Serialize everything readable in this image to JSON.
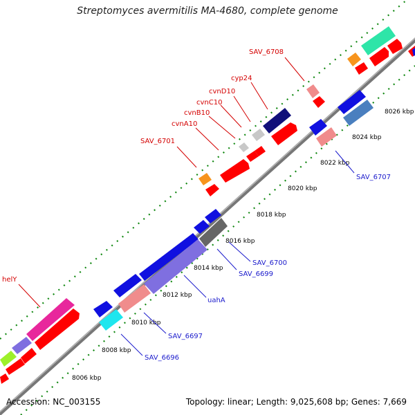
{
  "title": "Streptomyces avermitilis MA-4680, complete genome",
  "accession": "Accession: NC_003155",
  "summary": "Topology: linear; Length: 9,025,608 bp; Genes: 7,669",
  "ticks": [
    "8006 kbp",
    "8008 kbp",
    "8010 kbp",
    "8012 kbp",
    "8014 kbp",
    "8016 kbp",
    "8018 kbp",
    "8020 kbp",
    "8022 kbp",
    "8024 kbp",
    "8026 kbp"
  ],
  "labels_top": [
    "helY",
    "SAV_6701",
    "cvnA10",
    "cvnB10",
    "cvnC10",
    "cvnD10",
    "cyp24",
    "SAV_6708"
  ],
  "labels_bottom": [
    "SAV_6696",
    "SAV_6697",
    "uahA",
    "SAV_6699",
    "SAV_6700",
    "SAV_6707"
  ],
  "colors": {
    "red": "#ff0000",
    "blue": "#1010e0",
    "slate": "#7f6fe0",
    "pink": "#f08c8c",
    "magenta": "#e8279c",
    "cyan": "#1ee6ee",
    "teal": "#2ee5a8",
    "orange": "#f7941d",
    "navy": "#10107a",
    "steel": "#4a7fbf",
    "gray": "#666666",
    "lightgray": "#c8c8c8",
    "lime": "#9df02a"
  }
}
